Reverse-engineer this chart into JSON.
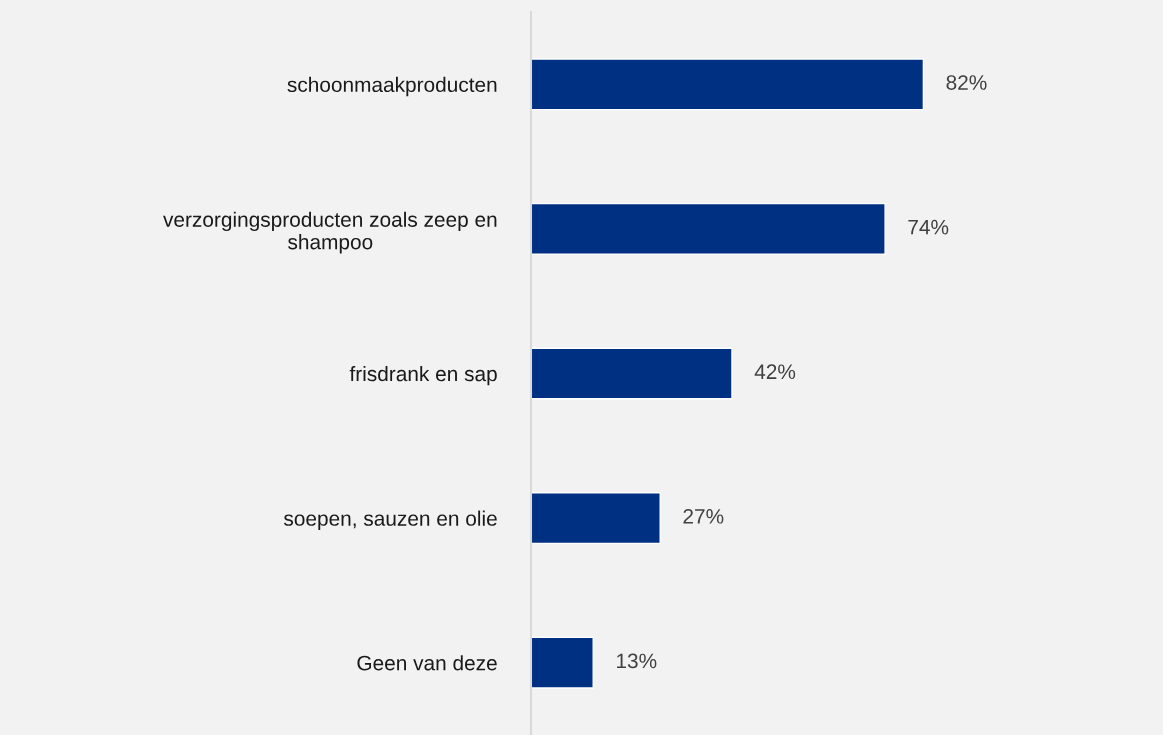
{
  "chart_data": {
    "type": "bar",
    "orientation": "horizontal",
    "categories": [
      "schoonmaakproducten",
      "verzorgingsproducten zoals zeep en\nshampoo",
      "frisdrank en sap",
      "soepen, sauzen en olie",
      "Geen van deze"
    ],
    "values": [
      82,
      74,
      42,
      27,
      13
    ],
    "value_labels": [
      "82%",
      "74%",
      "42%",
      "27%",
      "13%"
    ],
    "color": "#003082",
    "tick_labels": "y",
    "grid": false,
    "legend": false
  }
}
